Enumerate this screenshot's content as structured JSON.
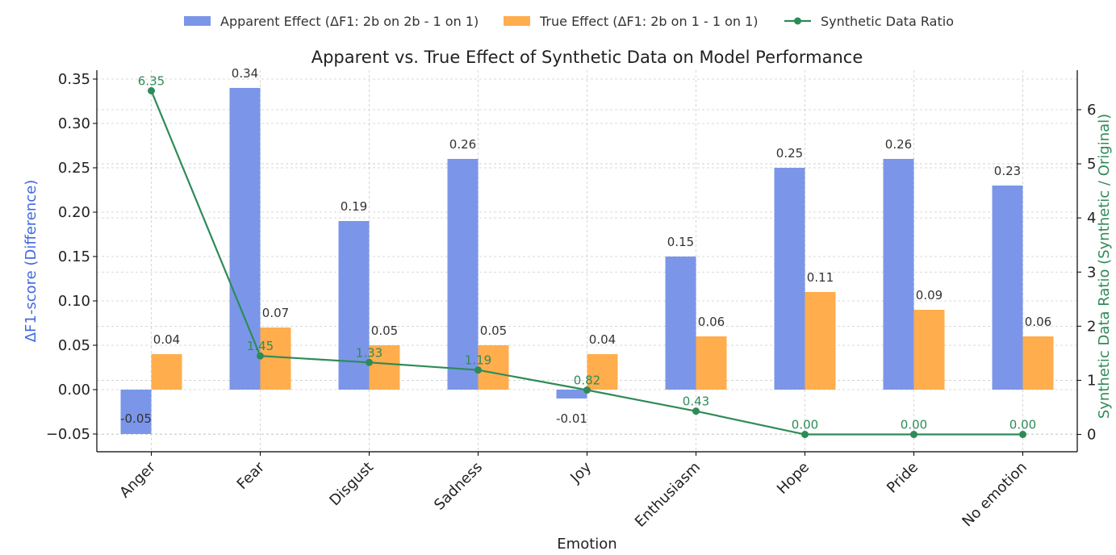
{
  "chart_data": {
    "type": "bar",
    "title": "Apparent vs. True Effect of Synthetic Data on Model Performance",
    "xlabel": "Emotion",
    "ylabel": "ΔF1-score (Difference)",
    "y2label": "Synthetic Data Ratio (Synthetic / Original)",
    "categories": [
      "Anger",
      "Fear",
      "Disgust",
      "Sadness",
      "Joy",
      "Enthusiasm",
      "Hope",
      "Pride",
      "No emotion"
    ],
    "series": [
      {
        "name": "Apparent Effect (ΔF1: 2b on 2b - 1 on 1)",
        "kind": "bar",
        "color": "#7b96e8",
        "values": [
          -0.05,
          0.34,
          0.19,
          0.26,
          -0.01,
          0.15,
          0.25,
          0.26,
          0.23
        ],
        "labels": [
          "-0.05",
          "0.34",
          "0.19",
          "0.26",
          "-0.01",
          "0.15",
          "0.25",
          "0.26",
          "0.23"
        ]
      },
      {
        "name": "True Effect (ΔF1: 2b on 1 - 1 on 1)",
        "kind": "bar",
        "color": "#ffad4d",
        "values": [
          0.04,
          0.07,
          0.05,
          0.05,
          0.04,
          0.06,
          0.11,
          0.09,
          0.06
        ],
        "labels": [
          "0.04",
          "0.07",
          "0.05",
          "0.05",
          "0.04",
          "0.06",
          "0.11",
          "0.09",
          "0.06"
        ]
      },
      {
        "name": "Synthetic Data Ratio",
        "kind": "line",
        "axis": "y2",
        "color": "#2e8b57",
        "values": [
          6.35,
          1.45,
          1.33,
          1.19,
          0.82,
          0.43,
          0.0,
          0.0,
          0.0
        ],
        "labels": [
          "6.35",
          "1.45",
          "1.33",
          "1.19",
          "0.82",
          "0.43",
          "0.00",
          "0.00",
          "0.00"
        ]
      }
    ],
    "ylim": [
      -0.07,
      0.36
    ],
    "yticks": [
      -0.05,
      0.0,
      0.05,
      0.1,
      0.15,
      0.2,
      0.25,
      0.3,
      0.35
    ],
    "ytick_labels": [
      "−0.05",
      "0.00",
      "0.05",
      "0.10",
      "0.15",
      "0.20",
      "0.25",
      "0.30",
      "0.35"
    ],
    "y2lim": [
      -0.32,
      6.73
    ],
    "y2ticks": [
      0,
      1,
      2,
      3,
      4,
      5,
      6
    ],
    "y2tick_labels": [
      "0",
      "1",
      "2",
      "3",
      "4",
      "5",
      "6"
    ],
    "grid": true,
    "legend": "top-center",
    "colors": {
      "label_color": "#4169e1",
      "label2_color": "#2e8b57",
      "grid": "#cccccc",
      "text": "#333333"
    }
  }
}
